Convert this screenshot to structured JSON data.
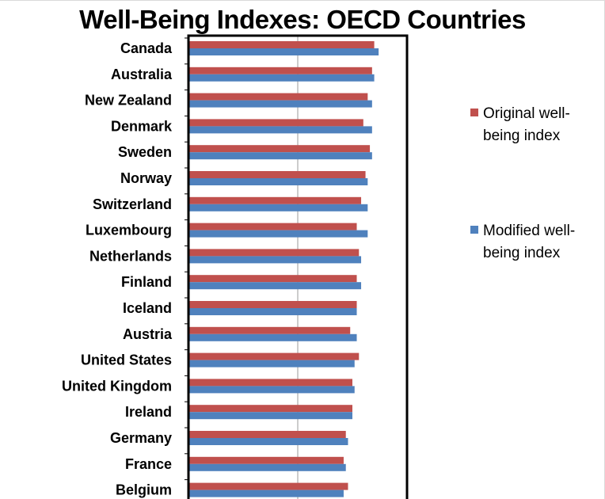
{
  "chart_data": {
    "type": "bar",
    "orientation": "horizontal",
    "title": "Well-Being Indexes: OECD Countries",
    "xlabel": "",
    "ylabel": "",
    "categories": [
      "Canada",
      "Australia",
      "New Zealand",
      "Denmark",
      "Sweden",
      "Norway",
      "Switzerland",
      "Luxembourg",
      "Netherlands",
      "Finland",
      "Iceland",
      "Austria",
      "United States",
      "United Kingdom",
      "Ireland",
      "Germany",
      "France",
      "Belgium"
    ],
    "series": [
      {
        "name": "Original well-being index",
        "color": "#c0504d",
        "values": [
          0.85,
          0.84,
          0.82,
          0.8,
          0.83,
          0.81,
          0.79,
          0.77,
          0.78,
          0.77,
          0.77,
          0.74,
          0.78,
          0.75,
          0.75,
          0.72,
          0.71,
          0.73
        ]
      },
      {
        "name": "Modified well-being index",
        "color": "#4f81bd",
        "values": [
          0.87,
          0.85,
          0.84,
          0.84,
          0.84,
          0.82,
          0.82,
          0.82,
          0.79,
          0.79,
          0.77,
          0.77,
          0.76,
          0.76,
          0.75,
          0.73,
          0.72,
          0.71
        ]
      }
    ],
    "xlim": [
      0,
      1.0
    ],
    "grid": "vertical",
    "legend": "right"
  }
}
